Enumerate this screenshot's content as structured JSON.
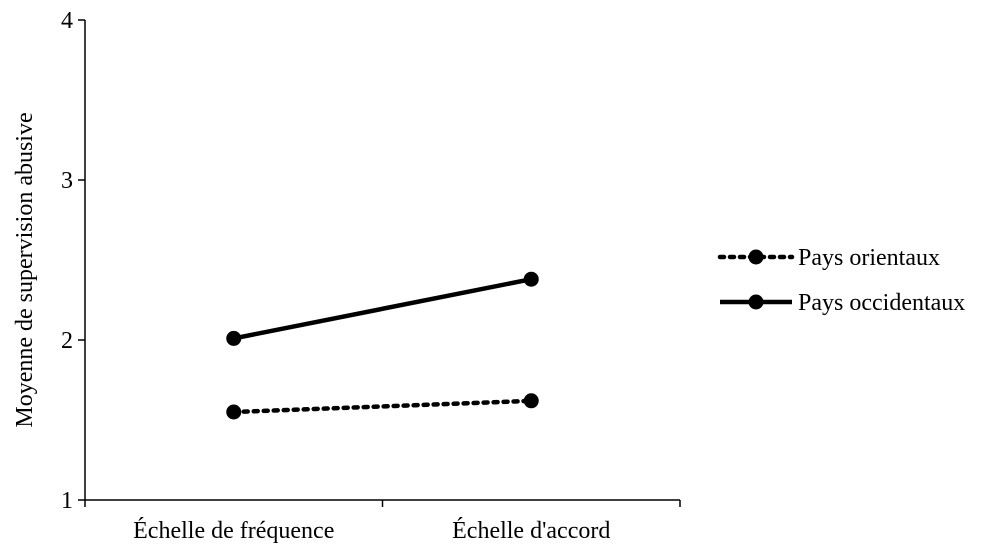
{
  "chart_data": {
    "type": "line",
    "title": "",
    "xlabel": "",
    "ylabel": "Moyenne de supervision abusive",
    "categories": [
      "Échelle de fréquence",
      "Échelle d'accord"
    ],
    "ylim": [
      1,
      4
    ],
    "yticks": [
      "1",
      "2",
      "3",
      "4"
    ],
    "grid": false,
    "legend_position": "right",
    "series": [
      {
        "name": "Pays orientaux",
        "values": [
          1.55,
          1.62
        ],
        "line_style": "dotted",
        "marker": "circle",
        "color": "#000000"
      },
      {
        "name": "Pays occidentaux",
        "values": [
          2.01,
          2.38
        ],
        "line_style": "solid",
        "marker": "circle",
        "color": "#000000"
      }
    ]
  }
}
